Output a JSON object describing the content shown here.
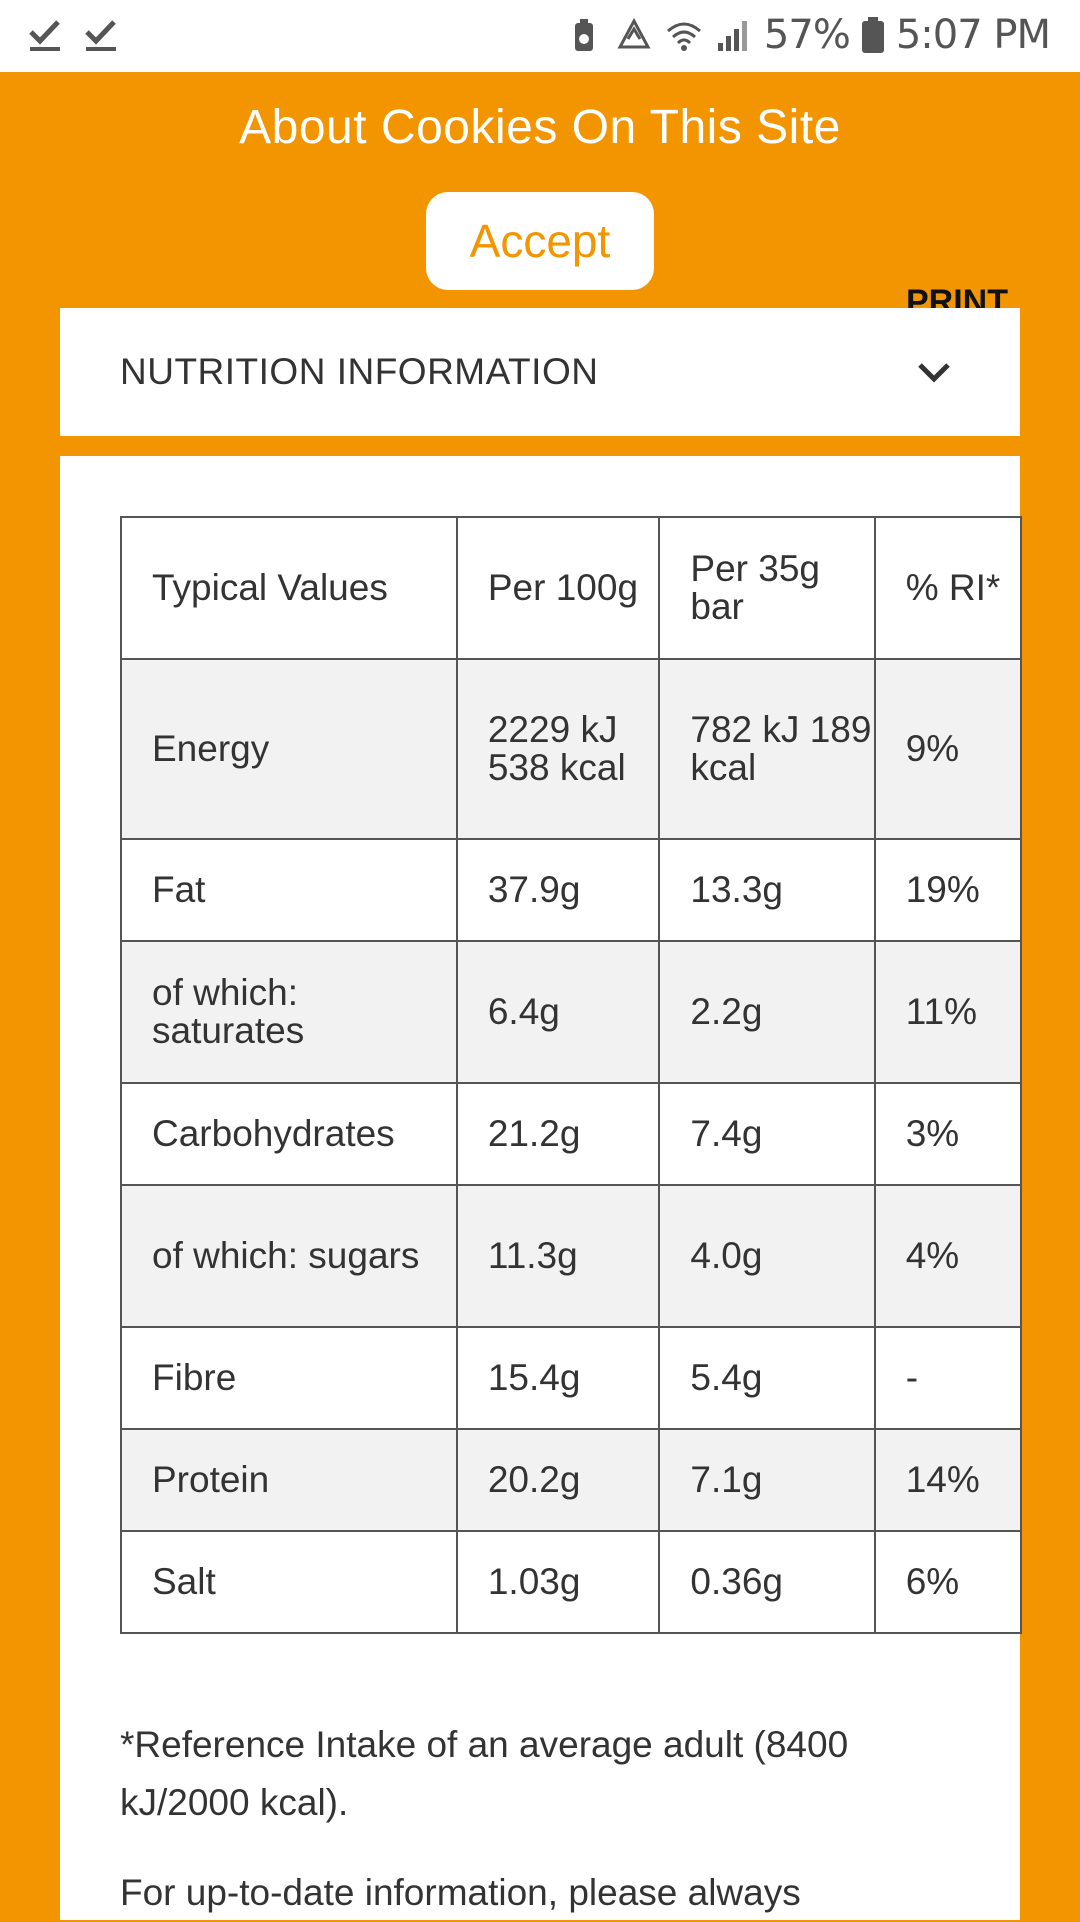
{
  "status_bar": {
    "battery_percent": "57%",
    "time": "5:07 PM",
    "icons": [
      "check-icon",
      "check-icon",
      "battery-saver-icon",
      "recycle-icon",
      "wifi-icon",
      "signal-icon",
      "battery-icon"
    ]
  },
  "cookie_banner": {
    "title": "About Cookies On This Site",
    "accept_label": "Accept"
  },
  "print_label": "PRINT",
  "accordion": {
    "title": "NUTRITION INFORMATION"
  },
  "nutrition_table": {
    "headers": [
      "Typical Values",
      "Per 100g",
      "Per 35g bar",
      "% RI*"
    ],
    "rows": [
      [
        "Energy",
        "2229 kJ 538 kcal",
        "782 kJ 189 kcal",
        "9%"
      ],
      [
        "Fat",
        "37.9g",
        "13.3g",
        "19%"
      ],
      [
        "of which: saturates",
        "6.4g",
        "2.2g",
        "11%"
      ],
      [
        "Carbohydrates",
        "21.2g",
        "7.4g",
        "3%"
      ],
      [
        "of which: sugars",
        "11.3g",
        "4.0g",
        "4%"
      ],
      [
        "Fibre",
        "15.4g",
        "5.4g",
        "-"
      ],
      [
        "Protein",
        "20.2g",
        "7.1g",
        "14%"
      ],
      [
        "Salt",
        "1.03g",
        "0.36g",
        "6%"
      ]
    ]
  },
  "footnotes": {
    "reference": "*Reference Intake of an average adult (8400 kJ/2000 kcal).",
    "up_to_date": "For up-to-date information, please always"
  },
  "colors": {
    "brand_orange": "#f29500",
    "alt_row": "#f2f2f2"
  }
}
